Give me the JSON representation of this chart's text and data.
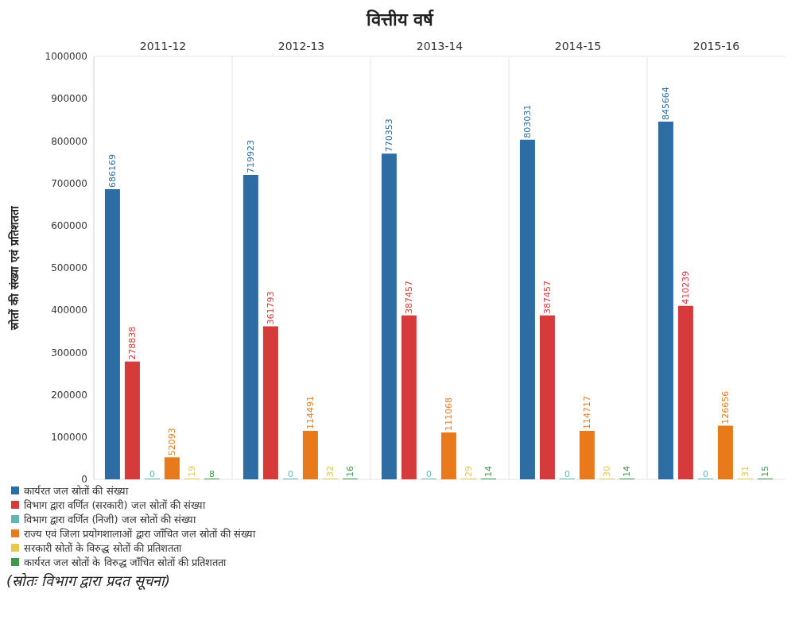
{
  "chart_data": {
    "type": "bar",
    "title": "वित्तीय वर्ष",
    "ylabel": "स्रोतों की संख्या एवं प्रतिशतता",
    "categories": [
      "2011-12",
      "2012-13",
      "2013-14",
      "2014-15",
      "2015-16"
    ],
    "series": [
      {
        "name": "कार्यरत जल स्रोतों की संख्या",
        "color": "#2e6da4",
        "values": [
          686169,
          719923,
          770353,
          803031,
          845664
        ]
      },
      {
        "name": "विभाग द्वारा वर्णित (सरकारी) जल स्रोतों की संख्या",
        "color": "#d63a3a",
        "values": [
          278838,
          361793,
          387457,
          387457,
          410239
        ]
      },
      {
        "name": "विभाग द्वारा वर्णित (निजी) जल स्रोतों की संख्या",
        "color": "#5fb8b0",
        "values": [
          0,
          0,
          0,
          0,
          0
        ]
      },
      {
        "name": "राज्य एवं जिला प्रयोगशालाओं द्वारा जाँचित जल स्रोतों की संख्या",
        "color": "#e87a1c",
        "values": [
          52093,
          114491,
          111068,
          114717,
          126656
        ]
      },
      {
        "name": "सरकारी स्रोतों के विरुद्ध स्रोतों की प्रतिशतता",
        "color": "#e6c84a",
        "values": [
          19,
          32,
          29,
          30,
          31
        ]
      },
      {
        "name": "कार्यरत जल स्रोतों के विरुद्ध जाँचित स्रोतों की प्रतिशतता",
        "color": "#3a9a4a",
        "values": [
          8,
          16,
          14,
          14,
          15
        ]
      }
    ],
    "ylim": [
      0,
      1000000
    ],
    "yticks": [
      0,
      100000,
      200000,
      300000,
      400000,
      500000,
      600000,
      700000,
      800000,
      900000,
      1000000
    ],
    "grid": true,
    "legend": "bottom left",
    "data_labels": true,
    "annotations": [
      "(स्रोतः विभाग द्वारा प्रदत सूचना)"
    ]
  }
}
